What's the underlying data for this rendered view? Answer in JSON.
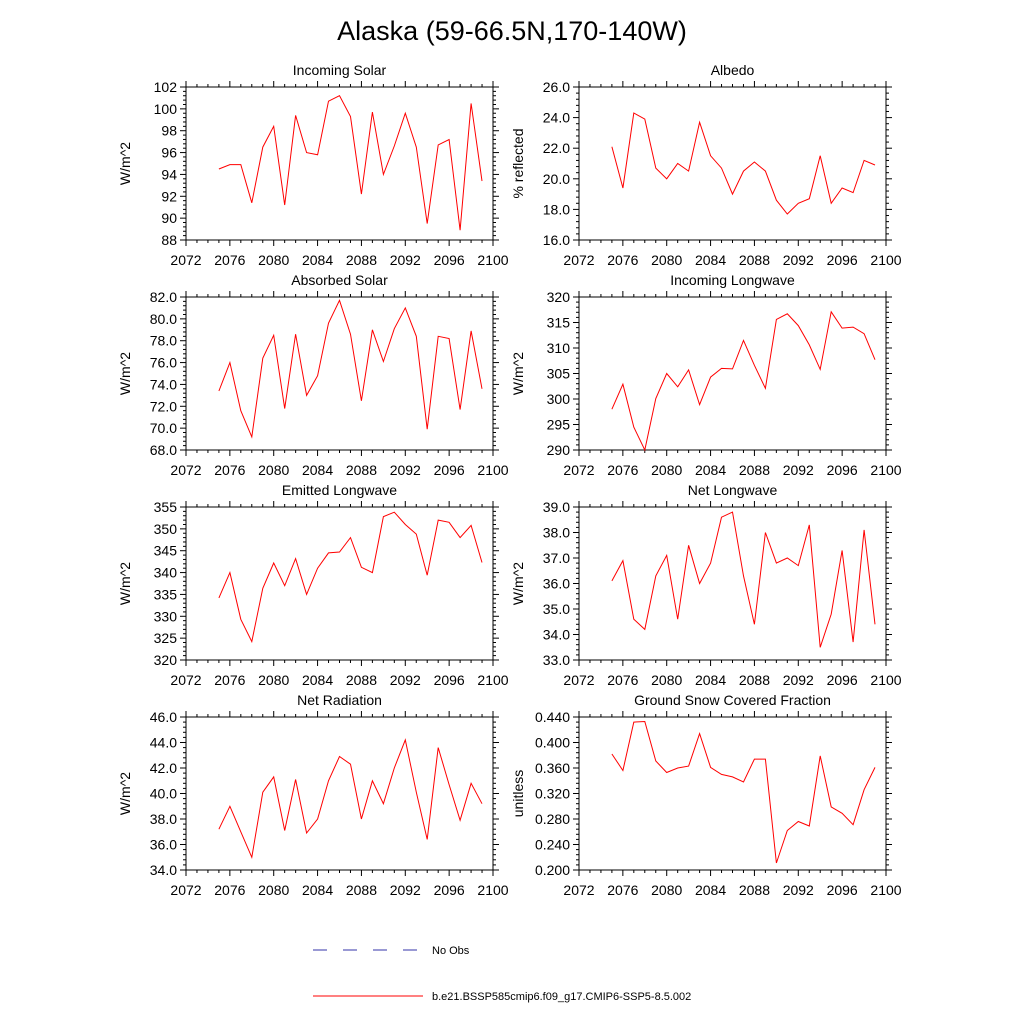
{
  "figure": {
    "title": "Alaska (59-66.5N,170-140W)",
    "legend": [
      {
        "label": "No Obs",
        "color": "#3333aa",
        "style": "dashed"
      },
      {
        "label": "b.e21.BSSP585cmip6.f09_g17.CMIP6-SSP5-8.5.002",
        "color": "#ff0000",
        "style": "solid"
      }
    ]
  },
  "chart_data": [
    {
      "type": "line",
      "title": "Incoming Solar",
      "ylabel": "W/m^2",
      "xlim": [
        2072,
        2100
      ],
      "ylim": [
        88,
        102
      ],
      "xticks": [
        2072,
        2076,
        2080,
        2084,
        2088,
        2092,
        2096,
        2100
      ],
      "xtick_labels": [
        "2072",
        "2076",
        "2080",
        "2084",
        "2088",
        "2092",
        "2096",
        "2100"
      ],
      "yticks": [
        88,
        90,
        92,
        94,
        96,
        98,
        100,
        102
      ],
      "ytick_labels": [
        "88",
        "90",
        "92",
        "94",
        "96",
        "98",
        "100",
        "102"
      ],
      "x": [
        2075,
        2076,
        2077,
        2078,
        2079,
        2080,
        2081,
        2082,
        2083,
        2084,
        2085,
        2086,
        2087,
        2088,
        2089,
        2090,
        2091,
        2092,
        2093,
        2094,
        2095,
        2096,
        2097,
        2098,
        2099
      ],
      "series": [
        {
          "name": "b.e21.BSSP585cmip6.f09_g17.CMIP6-SSP5-8.5.002",
          "color": "#ff0000",
          "values": [
            94.5,
            94.9,
            94.9,
            91.4,
            96.5,
            98.4,
            91.2,
            99.4,
            96.0,
            95.8,
            100.7,
            101.2,
            99.3,
            92.2,
            99.7,
            94.0,
            96.6,
            99.6,
            96.5,
            89.5,
            96.7,
            97.2,
            88.9,
            100.5,
            93.4
          ]
        }
      ]
    },
    {
      "type": "line",
      "title": "Albedo",
      "ylabel": "% reflected",
      "xlim": [
        2072,
        2100
      ],
      "ylim": [
        16,
        26
      ],
      "xticks": [
        2072,
        2076,
        2080,
        2084,
        2088,
        2092,
        2096,
        2100
      ],
      "xtick_labels": [
        "2072",
        "2076",
        "2080",
        "2084",
        "2088",
        "2092",
        "2096",
        "2100"
      ],
      "yticks": [
        16,
        18,
        20,
        22,
        24,
        26
      ],
      "ytick_labels": [
        "16.0",
        "18.0",
        "20.0",
        "22.0",
        "24.0",
        "26.0"
      ],
      "x": [
        2075,
        2076,
        2077,
        2078,
        2079,
        2080,
        2081,
        2082,
        2083,
        2084,
        2085,
        2086,
        2087,
        2088,
        2089,
        2090,
        2091,
        2092,
        2093,
        2094,
        2095,
        2096,
        2097,
        2098,
        2099
      ],
      "series": [
        {
          "name": "b.e21.BSSP585cmip6.f09_g17.CMIP6-SSP5-8.5.002",
          "color": "#ff0000",
          "values": [
            22.1,
            19.4,
            24.3,
            23.9,
            20.7,
            20.0,
            21.0,
            20.5,
            23.7,
            21.5,
            20.7,
            19.0,
            20.5,
            21.1,
            20.5,
            18.6,
            17.7,
            18.4,
            18.7,
            21.5,
            18.4,
            19.4,
            19.1,
            21.2,
            20.9
          ]
        }
      ]
    },
    {
      "type": "line",
      "title": "Absorbed Solar",
      "ylabel": "W/m^2",
      "xlim": [
        2072,
        2100
      ],
      "ylim": [
        68,
        82
      ],
      "xticks": [
        2072,
        2076,
        2080,
        2084,
        2088,
        2092,
        2096,
        2100
      ],
      "xtick_labels": [
        "2072",
        "2076",
        "2080",
        "2084",
        "2088",
        "2092",
        "2096",
        "2100"
      ],
      "yticks": [
        68,
        70,
        72,
        74,
        76,
        78,
        80,
        82
      ],
      "ytick_labels": [
        "68.0",
        "70.0",
        "72.0",
        "74.0",
        "76.0",
        "78.0",
        "80.0",
        "82.0"
      ],
      "x": [
        2075,
        2076,
        2077,
        2078,
        2079,
        2080,
        2081,
        2082,
        2083,
        2084,
        2085,
        2086,
        2087,
        2088,
        2089,
        2090,
        2091,
        2092,
        2093,
        2094,
        2095,
        2096,
        2097,
        2098,
        2099
      ],
      "series": [
        {
          "name": "b.e21.BSSP585cmip6.f09_g17.CMIP6-SSP5-8.5.002",
          "color": "#ff0000",
          "values": [
            73.4,
            76.0,
            71.6,
            69.2,
            76.4,
            78.5,
            71.8,
            78.6,
            73.0,
            74.8,
            79.6,
            81.7,
            78.6,
            72.5,
            79.0,
            76.1,
            79.1,
            81.0,
            78.4,
            69.9,
            78.4,
            78.2,
            71.7,
            78.9,
            73.6
          ]
        }
      ]
    },
    {
      "type": "line",
      "title": "Incoming Longwave",
      "ylabel": "W/m^2",
      "xlim": [
        2072,
        2100
      ],
      "ylim": [
        290,
        320
      ],
      "xticks": [
        2072,
        2076,
        2080,
        2084,
        2088,
        2092,
        2096,
        2100
      ],
      "xtick_labels": [
        "2072",
        "2076",
        "2080",
        "2084",
        "2088",
        "2092",
        "2096",
        "2100"
      ],
      "yticks": [
        290,
        295,
        300,
        305,
        310,
        315,
        320
      ],
      "ytick_labels": [
        "290",
        "295",
        "300",
        "305",
        "310",
        "315",
        "320"
      ],
      "x": [
        2075,
        2076,
        2077,
        2078,
        2079,
        2080,
        2081,
        2082,
        2083,
        2084,
        2085,
        2086,
        2087,
        2088,
        2089,
        2090,
        2091,
        2092,
        2093,
        2094,
        2095,
        2096,
        2097,
        2098,
        2099
      ],
      "series": [
        {
          "name": "b.e21.BSSP585cmip6.f09_g17.CMIP6-SSP5-8.5.002",
          "color": "#ff0000",
          "values": [
            298.0,
            302.9,
            294.5,
            290.0,
            300.1,
            305.0,
            302.4,
            305.7,
            298.9,
            304.3,
            306.0,
            305.9,
            311.5,
            306.6,
            302.1,
            315.6,
            316.7,
            314.4,
            310.6,
            305.8,
            317.1,
            313.9,
            314.1,
            312.8,
            307.7
          ]
        }
      ]
    },
    {
      "type": "line",
      "title": "Emitted Longwave",
      "ylabel": "W/m^2",
      "xlim": [
        2072,
        2100
      ],
      "ylim": [
        320,
        355
      ],
      "xticks": [
        2072,
        2076,
        2080,
        2084,
        2088,
        2092,
        2096,
        2100
      ],
      "xtick_labels": [
        "2072",
        "2076",
        "2080",
        "2084",
        "2088",
        "2092",
        "2096",
        "2100"
      ],
      "yticks": [
        320,
        325,
        330,
        335,
        340,
        345,
        350,
        355
      ],
      "ytick_labels": [
        "320",
        "325",
        "330",
        "335",
        "340",
        "345",
        "350",
        "355"
      ],
      "x": [
        2075,
        2076,
        2077,
        2078,
        2079,
        2080,
        2081,
        2082,
        2083,
        2084,
        2085,
        2086,
        2087,
        2088,
        2089,
        2090,
        2091,
        2092,
        2093,
        2094,
        2095,
        2096,
        2097,
        2098,
        2099
      ],
      "series": [
        {
          "name": "b.e21.BSSP585cmip6.f09_g17.CMIP6-SSP5-8.5.002",
          "color": "#ff0000",
          "values": [
            334.2,
            340.0,
            329.3,
            324.2,
            336.4,
            342.2,
            337.0,
            343.2,
            335.0,
            341.0,
            344.5,
            344.7,
            348.0,
            341.2,
            340.0,
            352.8,
            353.8,
            351.0,
            348.8,
            339.4,
            352.0,
            351.5,
            348.0,
            350.8,
            342.3
          ]
        }
      ]
    },
    {
      "type": "line",
      "title": "Net Longwave",
      "ylabel": "W/m^2",
      "xlim": [
        2072,
        2100
      ],
      "ylim": [
        33,
        39
      ],
      "xticks": [
        2072,
        2076,
        2080,
        2084,
        2088,
        2092,
        2096,
        2100
      ],
      "xtick_labels": [
        "2072",
        "2076",
        "2080",
        "2084",
        "2088",
        "2092",
        "2096",
        "2100"
      ],
      "yticks": [
        33,
        34,
        35,
        36,
        37,
        38,
        39
      ],
      "ytick_labels": [
        "33.0",
        "34.0",
        "35.0",
        "36.0",
        "37.0",
        "38.0",
        "39.0"
      ],
      "x": [
        2075,
        2076,
        2077,
        2078,
        2079,
        2080,
        2081,
        2082,
        2083,
        2084,
        2085,
        2086,
        2087,
        2088,
        2089,
        2090,
        2091,
        2092,
        2093,
        2094,
        2095,
        2096,
        2097,
        2098,
        2099
      ],
      "series": [
        {
          "name": "b.e21.BSSP585cmip6.f09_g17.CMIP6-SSP5-8.5.002",
          "color": "#ff0000",
          "values": [
            36.1,
            36.9,
            34.6,
            34.2,
            36.3,
            37.1,
            34.6,
            37.5,
            36.0,
            36.8,
            38.6,
            38.8,
            36.3,
            34.4,
            38.0,
            36.8,
            37.0,
            36.7,
            38.3,
            33.5,
            34.8,
            37.3,
            33.7,
            38.1,
            34.4
          ]
        }
      ]
    },
    {
      "type": "line",
      "title": "Net Radiation",
      "ylabel": "W/m^2",
      "xlim": [
        2072,
        2100
      ],
      "ylim": [
        34,
        46
      ],
      "xticks": [
        2072,
        2076,
        2080,
        2084,
        2088,
        2092,
        2096,
        2100
      ],
      "xtick_labels": [
        "2072",
        "2076",
        "2080",
        "2084",
        "2088",
        "2092",
        "2096",
        "2100"
      ],
      "yticks": [
        34,
        36,
        38,
        40,
        42,
        44,
        46
      ],
      "ytick_labels": [
        "34.0",
        "36.0",
        "38.0",
        "40.0",
        "42.0",
        "44.0",
        "46.0"
      ],
      "x": [
        2075,
        2076,
        2077,
        2078,
        2079,
        2080,
        2081,
        2082,
        2083,
        2084,
        2085,
        2086,
        2087,
        2088,
        2089,
        2090,
        2091,
        2092,
        2093,
        2094,
        2095,
        2096,
        2097,
        2098,
        2099
      ],
      "series": [
        {
          "name": "b.e21.BSSP585cmip6.f09_g17.CMIP6-SSP5-8.5.002",
          "color": "#ff0000",
          "values": [
            37.2,
            39.0,
            37.0,
            35.0,
            40.1,
            41.3,
            37.1,
            41.1,
            36.9,
            38.0,
            41.0,
            42.9,
            42.3,
            38.0,
            41.0,
            39.2,
            42.0,
            44.2,
            40.1,
            36.4,
            43.6,
            40.7,
            37.9,
            40.8,
            39.2
          ]
        }
      ]
    },
    {
      "type": "line",
      "title": "Ground Snow Covered Fraction",
      "ylabel": "unitless",
      "xlim": [
        2072,
        2100
      ],
      "ylim": [
        0.2,
        0.44
      ],
      "xticks": [
        2072,
        2076,
        2080,
        2084,
        2088,
        2092,
        2096,
        2100
      ],
      "xtick_labels": [
        "2072",
        "2076",
        "2080",
        "2084",
        "2088",
        "2092",
        "2096",
        "2100"
      ],
      "yticks": [
        0.2,
        0.24,
        0.28,
        0.32,
        0.36,
        0.4,
        0.44
      ],
      "ytick_labels": [
        "0.200",
        "0.240",
        "0.280",
        "0.320",
        "0.360",
        "0.400",
        "0.440"
      ],
      "x": [
        2075,
        2076,
        2077,
        2078,
        2079,
        2080,
        2081,
        2082,
        2083,
        2084,
        2085,
        2086,
        2087,
        2088,
        2089,
        2090,
        2091,
        2092,
        2093,
        2094,
        2095,
        2096,
        2097,
        2098,
        2099
      ],
      "series": [
        {
          "name": "b.e21.BSSP585cmip6.f09_g17.CMIP6-SSP5-8.5.002",
          "color": "#ff0000",
          "values": [
            0.382,
            0.356,
            0.432,
            0.433,
            0.371,
            0.353,
            0.36,
            0.363,
            0.414,
            0.361,
            0.35,
            0.346,
            0.338,
            0.374,
            0.374,
            0.211,
            0.262,
            0.276,
            0.269,
            0.379,
            0.299,
            0.289,
            0.271,
            0.326,
            0.361
          ]
        }
      ]
    }
  ]
}
